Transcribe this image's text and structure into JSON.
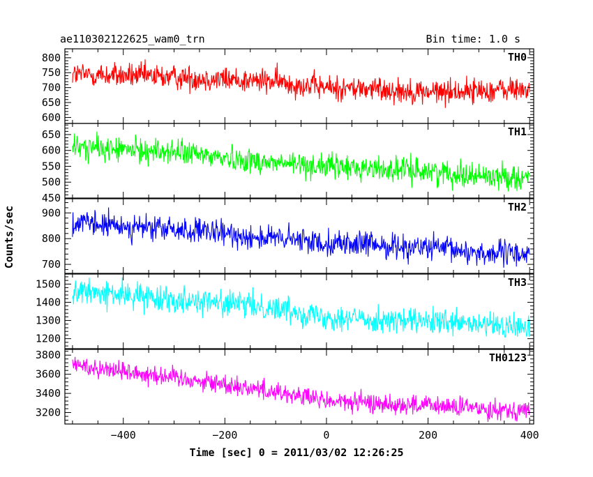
{
  "chart_data": {
    "type": "line",
    "title": "ae110302122625_wam0_trn",
    "bin_time": "Bin time: 1.0 s",
    "xlabel": "Time [sec] 0 = 2011/03/02 12:26:25",
    "ylabel": "Counts/sec",
    "xlim": [
      -515,
      408
    ],
    "x_ticks": [
      -400,
      -200,
      0,
      200,
      400
    ],
    "x_step": 1,
    "panels": [
      {
        "name": "TH0",
        "color": "#ff0000",
        "ylim": [
          580,
          830
        ],
        "y_ticks": [
          600,
          650,
          700,
          750,
          800
        ],
        "trend": [
          [
            -500,
            745
          ],
          [
            -300,
            735
          ],
          [
            -100,
            720
          ],
          [
            0,
            700
          ],
          [
            100,
            695
          ],
          [
            200,
            685
          ],
          [
            400,
            695
          ]
        ],
        "noise": 30
      },
      {
        "name": "TH1",
        "color": "#00ff00",
        "ylim": [
          450,
          685
        ],
        "y_ticks": [
          450,
          500,
          550,
          600,
          650
        ],
        "trend": [
          [
            -500,
            610
          ],
          [
            -300,
            595
          ],
          [
            -100,
            560
          ],
          [
            0,
            550
          ],
          [
            200,
            535
          ],
          [
            300,
            520
          ],
          [
            400,
            515
          ]
        ],
        "noise": 28
      },
      {
        "name": "TH2",
        "color": "#0000ff",
        "ylim": [
          665,
          955
        ],
        "y_ticks": [
          700,
          800,
          900
        ],
        "trend": [
          [
            -500,
            860
          ],
          [
            -300,
            835
          ],
          [
            -100,
            800
          ],
          [
            0,
            785
          ],
          [
            200,
            765
          ],
          [
            300,
            745
          ],
          [
            400,
            740
          ]
        ],
        "noise": 35
      },
      {
        "name": "TH3",
        "color": "#00ffff",
        "ylim": [
          1145,
          1555
        ],
        "y_ticks": [
          1200,
          1300,
          1400,
          1500
        ],
        "trend": [
          [
            -500,
            1460
          ],
          [
            -300,
            1420
          ],
          [
            -100,
            1370
          ],
          [
            0,
            1320
          ],
          [
            200,
            1290
          ],
          [
            400,
            1260
          ]
        ],
        "noise": 50
      },
      {
        "name": "TH0123",
        "color": "#ff00ff",
        "ylim": [
          3080,
          3860
        ],
        "y_ticks": [
          3200,
          3400,
          3600,
          3800
        ],
        "trend": [
          [
            -500,
            3700
          ],
          [
            -300,
            3570
          ],
          [
            -100,
            3420
          ],
          [
            0,
            3320
          ],
          [
            200,
            3270
          ],
          [
            400,
            3220
          ]
        ],
        "noise": 75
      }
    ]
  }
}
